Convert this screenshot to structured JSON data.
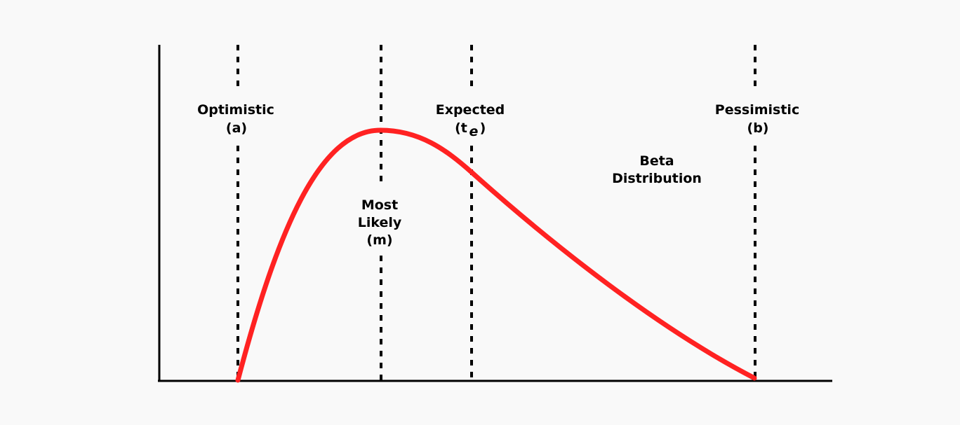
{
  "diagram": {
    "curve_color": "#ff2222",
    "labels": {
      "optimistic": "Optimistic",
      "optimistic_symbol": "(a)",
      "most_likely_1": "Most",
      "most_likely_2": "Likely",
      "most_likely_symbol": "(m)",
      "expected": "Expected",
      "expected_symbol_open": "(t",
      "expected_subscript": "e",
      "expected_symbol_close": ")",
      "pessimistic": "Pessimistic",
      "pessimistic_symbol": "(b)",
      "curve_name_1": "Beta",
      "curve_name_2": "Distribution"
    }
  }
}
